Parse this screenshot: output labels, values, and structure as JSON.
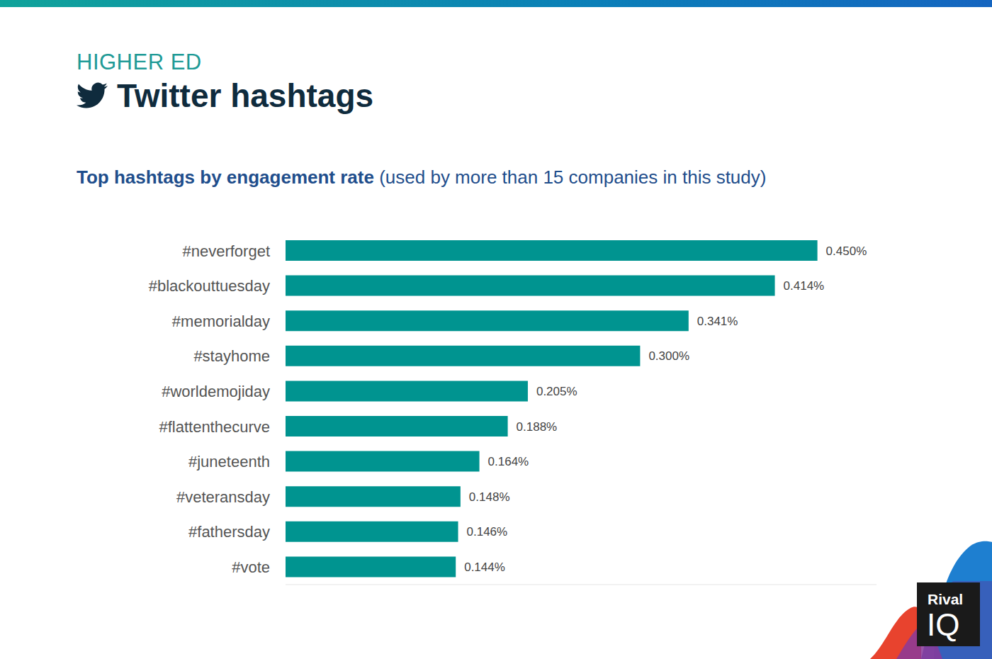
{
  "header": "HIGHER ED",
  "chart_data": {
    "type": "bar",
    "title": "Twitter hashtags",
    "subtitle": {
      "bold": "Top hashtags by engagement rate",
      "rest": "(used by more than 15 companies in this study)"
    },
    "orientation": "horizontal",
    "categories": [
      "#neverforget",
      "#blackouttuesday",
      "#memorialday",
      "#stayhome",
      "#worldemojiday",
      "#flattenthecurve",
      "#juneteenth",
      "#veteransday",
      "#fathersday",
      "#vote"
    ],
    "values": [
      0.45,
      0.414,
      0.341,
      0.3,
      0.205,
      0.188,
      0.164,
      0.148,
      0.146,
      0.144
    ],
    "value_labels": [
      "0.450%",
      "0.414%",
      "0.341%",
      "0.300%",
      "0.205%",
      "0.188%",
      "0.164%",
      "0.148%",
      "0.146%",
      "0.144%"
    ],
    "color": "#009490",
    "xlim": [
      0,
      0.5
    ],
    "grid": false,
    "data_labels": true,
    "tick_labels": "y"
  },
  "logo": {
    "line1": "Rival",
    "line2": "IQ"
  }
}
